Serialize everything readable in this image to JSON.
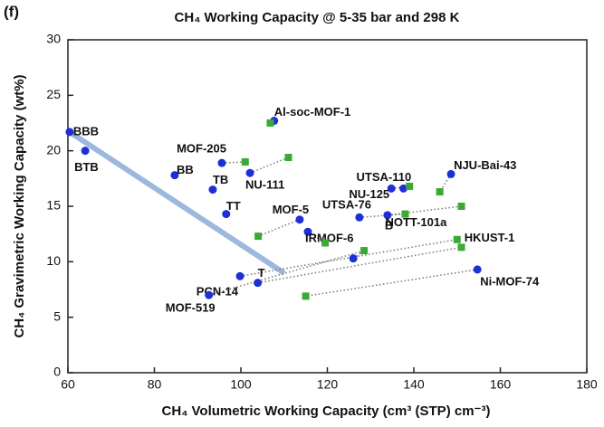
{
  "panel_label": "(f)",
  "chart_data": {
    "type": "scatter",
    "title": "CH₄ Working Capacity @ 5-35 bar and 298 K",
    "xlabel": "CH₄ Volumetric Working Capacity (cm³ (STP) cm⁻³)",
    "ylabel": "CH₄ Gravimetric Working Capacity (wt%)",
    "xlim": [
      60,
      180
    ],
    "xticks": [
      60,
      80,
      100,
      120,
      140,
      160,
      180
    ],
    "ylim": [
      0,
      30
    ],
    "yticks": [
      0,
      5,
      10,
      15,
      20,
      25,
      30
    ],
    "series": [
      {
        "color": "#1f2fd6",
        "marker": "circle",
        "x": [
          60.4,
          64.0,
          84.7,
          93.5,
          96.6,
          95.6,
          102.1,
          107.7,
          113.6,
          115.5,
          99.8,
          103.9,
          92.6,
          126.0,
          127.4,
          133.9,
          134.8,
          137.6,
          148.6,
          154.7
        ],
        "values": [
          21.7,
          20.0,
          17.8,
          16.5,
          14.3,
          18.9,
          18.0,
          22.7,
          13.8,
          12.7,
          8.7,
          8.1,
          7.0,
          10.3,
          14.0,
          14.2,
          16.6,
          16.6,
          17.9,
          9.3
        ],
        "labels": [
          "BBB",
          "BTB",
          "BB",
          "TB",
          "TT",
          "MOF-205",
          "NU-111",
          "Al-soc-MOF-1",
          "MOF-5",
          "IRMOF-6",
          "PCN-14",
          "T",
          "MOF-519",
          null,
          "UTSA-76",
          "B",
          "NU-125",
          "UTSA-110",
          "NJU-Bai-43",
          "Ni-MOF-74"
        ]
      },
      {
        "color": "#3aa935",
        "marker": "square",
        "x": [
          106.8,
          101.0,
          111.0,
          104.0,
          119.5,
          128.5,
          150.0,
          151.0,
          115.0,
          138.0,
          151.0,
          139.0,
          146.0
        ],
        "values": [
          22.5,
          19.0,
          19.4,
          12.3,
          11.7,
          11.0,
          12.0,
          11.3,
          6.9,
          14.3,
          15.0,
          16.8,
          16.3
        ],
        "labels": [
          null,
          null,
          null,
          null,
          null,
          null,
          "HKUST-1",
          null,
          null,
          "NOTT-101a",
          null,
          null,
          null
        ]
      }
    ]
  }
}
